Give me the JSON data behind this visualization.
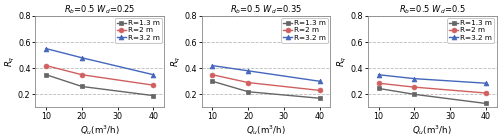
{
  "subplots": [
    {
      "title": "$R_b$=0.5 $W_d$=0.25",
      "x": [
        10,
        20,
        40
      ],
      "series": [
        {
          "label": "R=1.3 m",
          "color": "#666666",
          "marker": "s",
          "y": [
            0.35,
            0.26,
            0.19
          ]
        },
        {
          "label": "R=2 m",
          "color": "#d06060",
          "marker": "o",
          "y": [
            0.42,
            0.35,
            0.27
          ]
        },
        {
          "label": "R=3.2 m",
          "color": "#4466bb",
          "marker": "^",
          "y": [
            0.55,
            0.48,
            0.35
          ]
        }
      ]
    },
    {
      "title": "$R_b$=0.5 $W_d$=0.35",
      "x": [
        10,
        20,
        40
      ],
      "series": [
        {
          "label": "R=1.3 m",
          "color": "#666666",
          "marker": "s",
          "y": [
            0.3,
            0.22,
            0.17
          ]
        },
        {
          "label": "R=2 m",
          "color": "#d06060",
          "marker": "o",
          "y": [
            0.35,
            0.29,
            0.23
          ]
        },
        {
          "label": "R=3.2 m",
          "color": "#4466bb",
          "marker": "^",
          "y": [
            0.42,
            0.38,
            0.3
          ]
        }
      ]
    },
    {
      "title": "$R_b$=0.5 $W_d$=0.5",
      "x": [
        10,
        20,
        40
      ],
      "series": [
        {
          "label": "R=1.3 m",
          "color": "#666666",
          "marker": "s",
          "y": [
            0.245,
            0.2,
            0.13
          ]
        },
        {
          "label": "R=2 m",
          "color": "#d06060",
          "marker": "o",
          "y": [
            0.285,
            0.255,
            0.21
          ]
        },
        {
          "label": "R=3.2 m",
          "color": "#4466bb",
          "marker": "^",
          "y": [
            0.35,
            0.32,
            0.285
          ]
        }
      ]
    }
  ],
  "ylim": [
    0.1,
    0.8
  ],
  "yticks": [
    0.2,
    0.4,
    0.6,
    0.8
  ],
  "xticks": [
    10,
    20,
    30,
    40
  ],
  "xlim": [
    7,
    43
  ],
  "xlabel": "$Q_u$(m$^3$/h)",
  "ylabel": "$R_q$",
  "grid_color": "#bbbbbb",
  "bg_color": "#ffffff",
  "linewidth": 1.0,
  "markersize": 3.5,
  "title_fontsize": 6.0,
  "legend_fontsize": 5.2,
  "axis_fontsize": 6.2,
  "tick_fontsize": 5.8
}
